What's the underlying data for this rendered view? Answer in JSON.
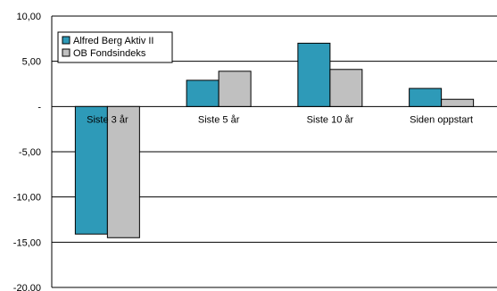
{
  "chart_data": {
    "type": "bar",
    "categories": [
      "Siste 3 år",
      "Siste 5 år",
      "Siste 10 år",
      "Siden oppstart"
    ],
    "series": [
      {
        "name": "Alfred Berg Aktiv II",
        "values": [
          -14.1,
          2.9,
          7.0,
          2.0
        ],
        "color": "#2E9AB8"
      },
      {
        "name": "OB Fondsindeks",
        "values": [
          -14.5,
          3.9,
          4.1,
          0.8
        ],
        "color": "#C0C0C0"
      }
    ],
    "ylim": [
      -20,
      10
    ],
    "yticks": [
      10,
      5,
      0,
      -5,
      -10,
      -15,
      -20
    ],
    "ytick_labels": [
      "10,00",
      "5,00",
      "-",
      "-5,00",
      "-10,00",
      "-15,00",
      "-20,00"
    ],
    "grid": true,
    "legend_position": "top-left",
    "title": "",
    "xlabel": "",
    "ylabel": ""
  }
}
